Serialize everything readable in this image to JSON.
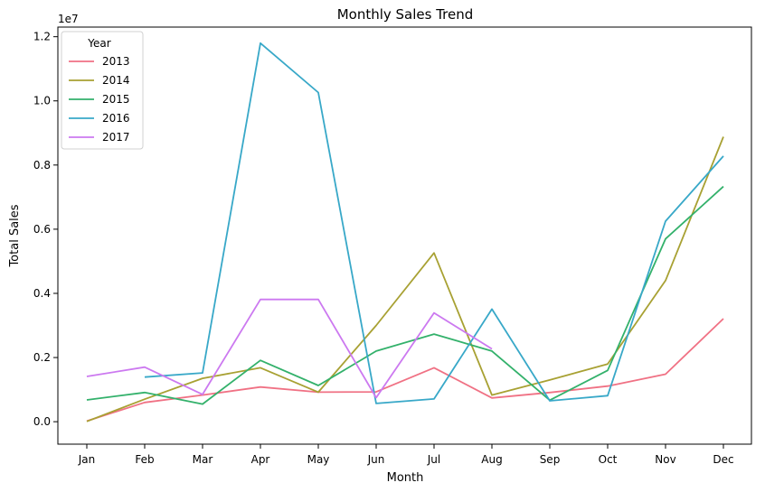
{
  "chart_data": {
    "type": "line",
    "title": "Monthly Sales Trend",
    "xlabel": "Month",
    "ylabel": "Total Sales",
    "y_offset_label": "1e7",
    "categories": [
      "Jan",
      "Feb",
      "Mar",
      "Apr",
      "May",
      "Jun",
      "Jul",
      "Aug",
      "Sep",
      "Oct",
      "Nov",
      "Dec"
    ],
    "ylim": [
      -0.07,
      1.23
    ],
    "yticks": [
      0.0,
      0.2,
      0.4,
      0.6,
      0.8,
      1.0,
      1.2
    ],
    "ytick_labels": [
      "0.0",
      "0.2",
      "0.4",
      "0.6",
      "0.8",
      "1.0",
      "1.2"
    ],
    "grid": false,
    "legend": {
      "title": "Year",
      "placement": "top-left"
    },
    "series": [
      {
        "name": "2013",
        "color": "#f07184",
        "values": [
          0.002,
          0.06,
          0.083,
          0.108,
          0.092,
          0.093,
          0.168,
          0.074,
          0.091,
          0.111,
          0.148,
          0.321
        ]
      },
      {
        "name": "2014",
        "color": "#a8a133",
        "values": [
          0.001,
          0.07,
          0.135,
          0.168,
          0.092,
          0.3,
          0.526,
          0.083,
          0.13,
          0.18,
          0.44,
          0.888
        ]
      },
      {
        "name": "2015",
        "color": "#33b16b",
        "values": [
          0.068,
          0.091,
          0.055,
          0.191,
          0.113,
          0.22,
          0.273,
          0.22,
          0.067,
          0.16,
          0.57,
          0.733
        ]
      },
      {
        "name": "2016",
        "color": "#38a8c8",
        "values": [
          null,
          0.139,
          0.152,
          1.18,
          1.026,
          0.057,
          0.071,
          0.351,
          0.065,
          0.081,
          0.625,
          0.828
        ]
      },
      {
        "name": "2017",
        "color": "#cc79f0",
        "values": [
          0.141,
          0.17,
          0.085,
          0.381,
          0.381,
          0.075,
          0.339,
          0.227,
          null,
          null,
          null,
          null
        ]
      }
    ]
  }
}
